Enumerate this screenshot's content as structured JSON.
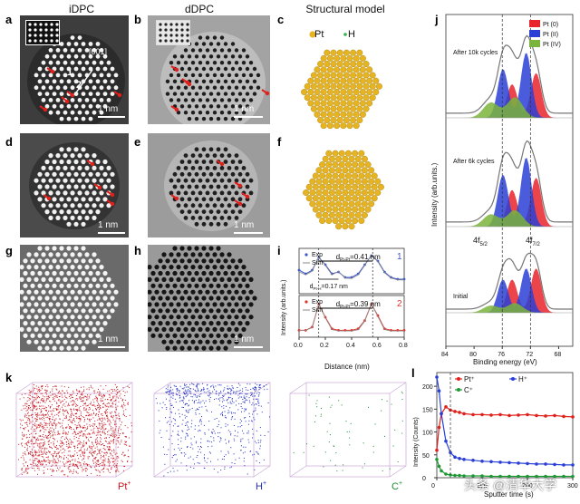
{
  "column_titles": {
    "idpc": "iDPC",
    "ddpc": "dDPC",
    "model": "Structural model"
  },
  "panels": {
    "a": "a",
    "b": "b",
    "c": "c",
    "d": "d",
    "e": "e",
    "f": "f",
    "g": "g",
    "h": "h",
    "i": "i",
    "j": "j",
    "k": "k",
    "l": "l"
  },
  "panel_a": {
    "zone_axis": "[001]",
    "marker_1": "1",
    "marker_2": "2",
    "scale": "1 nm"
  },
  "panel_b": {
    "scale": "1 nm"
  },
  "panel_c": {
    "legend_pt": "Pt",
    "legend_h": "H"
  },
  "panel_d": {
    "scale": "1 nm"
  },
  "panel_e": {
    "scale": "1 nm"
  },
  "panel_g": {
    "scale": "1 nm"
  },
  "panel_h": {
    "scale": "1 nm"
  },
  "colors": {
    "pt_atom": "#e6b422",
    "h_atom": "#35b24a",
    "red_arrow": "#e0201b",
    "pt0": "#e8232b",
    "pt2": "#2a3fd6",
    "pt4": "#7ab43c",
    "exp": "#3b57c9",
    "sim": "#8a8a8a",
    "exp2": "#e0332b"
  },
  "chart_data": [
    {
      "type": "line",
      "panel": "i",
      "ylabel": "Intensity (arb.units.)",
      "xlabel": "Distance (nm)",
      "xlim": [
        0.0,
        0.8
      ],
      "xticks": [
        "0.0",
        "0.2",
        "0.4",
        "0.6",
        "0.8"
      ],
      "subplots": [
        {
          "id": "1",
          "legend": [
            "Exp",
            "Sim"
          ],
          "annotations": [
            "d",
            "Pt-Pt",
            "=0.41 nm",
            "d",
            "Pt-H",
            "=0.17 nm"
          ],
          "series": [
            {
              "name": "Exp",
              "x": [
                0.0,
                0.05,
                0.1,
                0.15,
                0.2,
                0.25,
                0.3,
                0.35,
                0.4,
                0.45,
                0.5,
                0.55,
                0.6,
                0.65,
                0.7,
                0.75,
                0.8
              ],
              "values": [
                0.55,
                0.45,
                0.55,
                0.9,
                0.7,
                0.45,
                0.5,
                0.35,
                0.35,
                0.45,
                0.7,
                0.95,
                0.8,
                0.5,
                0.35,
                0.3,
                0.3
              ]
            },
            {
              "name": "Sim",
              "x": [
                0.0,
                0.05,
                0.1,
                0.15,
                0.2,
                0.25,
                0.3,
                0.35,
                0.4,
                0.45,
                0.5,
                0.55,
                0.6,
                0.65,
                0.7,
                0.75,
                0.8
              ],
              "values": [
                0.5,
                0.42,
                0.52,
                0.92,
                0.68,
                0.42,
                0.52,
                0.33,
                0.32,
                0.42,
                0.68,
                0.97,
                0.78,
                0.48,
                0.33,
                0.28,
                0.28
              ]
            }
          ]
        },
        {
          "id": "2",
          "legend": [
            "Exp",
            "Sim"
          ],
          "annotations": [
            "d",
            "Pt-Pt",
            "=0.39 nm"
          ],
          "series": [
            {
              "name": "Exp",
              "x": [
                0.0,
                0.05,
                0.1,
                0.15,
                0.2,
                0.25,
                0.3,
                0.35,
                0.4,
                0.45,
                0.5,
                0.55,
                0.6,
                0.65,
                0.7,
                0.75,
                0.8
              ],
              "values": [
                0.1,
                0.1,
                0.2,
                0.9,
                0.5,
                0.15,
                0.1,
                0.1,
                0.1,
                0.15,
                0.4,
                0.9,
                0.55,
                0.15,
                0.1,
                0.1,
                0.1
              ]
            },
            {
              "name": "Sim",
              "x": [
                0.0,
                0.05,
                0.1,
                0.15,
                0.2,
                0.25,
                0.3,
                0.35,
                0.4,
                0.45,
                0.5,
                0.55,
                0.6,
                0.65,
                0.7,
                0.75,
                0.8
              ],
              "values": [
                0.1,
                0.1,
                0.18,
                0.92,
                0.48,
                0.12,
                0.08,
                0.08,
                0.08,
                0.12,
                0.38,
                0.92,
                0.52,
                0.12,
                0.08,
                0.08,
                0.08
              ]
            }
          ]
        }
      ]
    },
    {
      "type": "area",
      "panel": "j",
      "ylabel": "Intensity (arb.units.)",
      "xlabel": "Binding energy (eV)",
      "xlim": [
        84,
        66
      ],
      "xticks": [
        "84",
        "80",
        "76",
        "72",
        "68"
      ],
      "legend": [
        "Pt (0)",
        "Pt (II)",
        "Pt (IV)"
      ],
      "peak_labels": {
        "f52": "4f",
        "f52_sub": "5/2",
        "f72": "4f",
        "f72_sub": "7/2"
      },
      "conditions": [
        "After 10k cycles",
        "After 6k cycles",
        "Initial"
      ],
      "dashed_lines": [
        76,
        72
      ]
    },
    {
      "type": "scatter",
      "panel": "l",
      "ylabel": "Intensity (Counts)",
      "xlabel": "Sputter time (s)",
      "xticks": [
        "0",
        "100",
        "200",
        "300"
      ],
      "yticks": [
        "0",
        "50",
        "100",
        "150",
        "200"
      ],
      "xlim": [
        0,
        300
      ],
      "ylim": [
        0,
        230
      ],
      "legend": [
        "Pt⁺",
        "H⁺",
        "C⁺"
      ],
      "series": [
        {
          "name": "Pt⁺",
          "x": [
            0,
            5,
            10,
            20,
            30,
            40,
            50,
            60,
            80,
            100,
            120,
            140,
            160,
            180,
            200,
            220,
            240,
            260,
            280,
            300
          ],
          "values": [
            60,
            110,
            140,
            155,
            148,
            145,
            143,
            140,
            138,
            138,
            137,
            138,
            136,
            137,
            138,
            136,
            135,
            136,
            134,
            133
          ]
        },
        {
          "name": "H⁺",
          "x": [
            0,
            5,
            10,
            20,
            30,
            40,
            50,
            60,
            80,
            100,
            120,
            140,
            160,
            180,
            200,
            220,
            240,
            260,
            280,
            300
          ],
          "values": [
            220,
            190,
            140,
            80,
            55,
            45,
            42,
            40,
            38,
            36,
            35,
            34,
            33,
            32,
            31,
            30,
            30,
            29,
            28,
            28
          ]
        },
        {
          "name": "C⁺",
          "x": [
            0,
            5,
            10,
            20,
            30,
            40,
            50,
            60,
            80,
            100,
            120,
            140,
            160,
            180,
            200,
            220,
            240,
            260,
            280,
            300
          ],
          "values": [
            40,
            25,
            15,
            8,
            6,
            5,
            5,
            4,
            4,
            4,
            3,
            3,
            3,
            3,
            3,
            3,
            3,
            3,
            3,
            3
          ]
        }
      ]
    }
  ],
  "panel_k": {
    "pt_label": "Pt",
    "h_label": "H",
    "c_label": "C",
    "plus": "+"
  },
  "watermark": "头条 @清华大学"
}
